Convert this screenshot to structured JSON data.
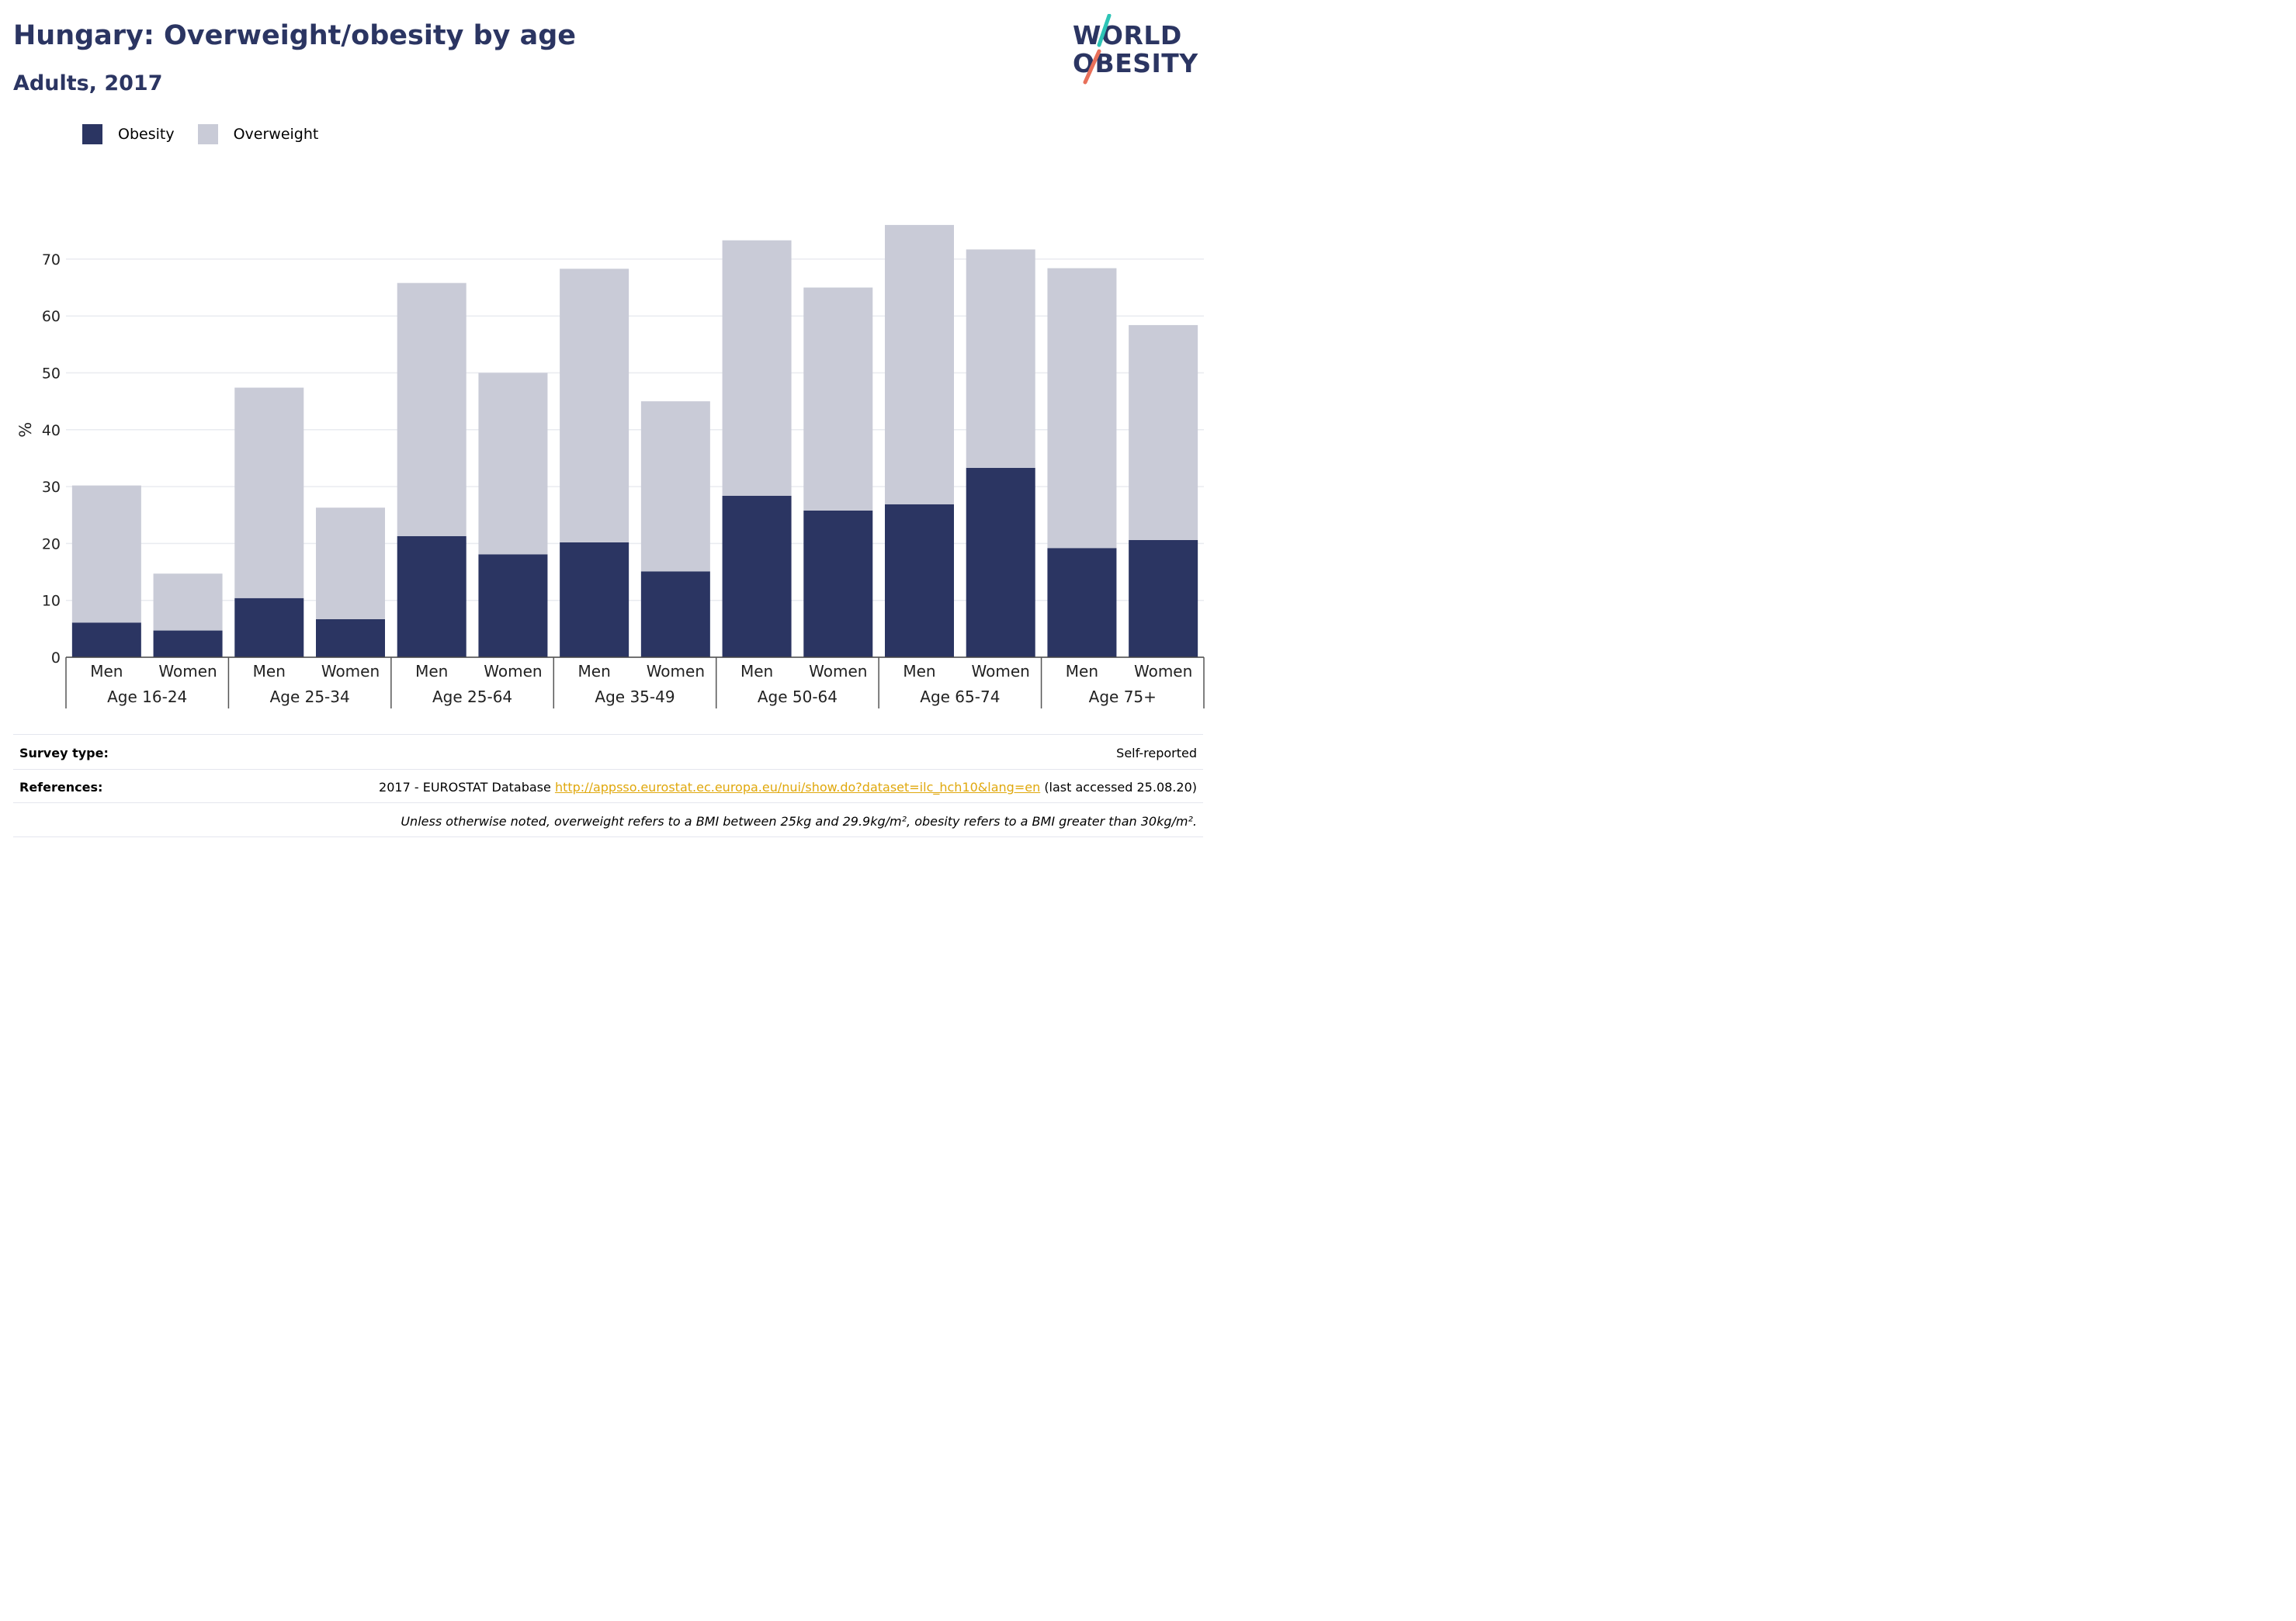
{
  "header": {
    "title": "Hungary: Overweight/obesity by age",
    "subtitle": "Adults, 2017"
  },
  "logo": {
    "line1": "WORLD",
    "line2": "OBESITY",
    "slash_colors": [
      "#2ec4b6",
      "#e8705a"
    ]
  },
  "legend": [
    {
      "label": "Obesity",
      "color": "#2b3562"
    },
    {
      "label": "Overweight",
      "color": "#c9cbd7"
    }
  ],
  "chart_data": {
    "type": "bar",
    "stacked": true,
    "ylabel": "%",
    "ylim": [
      0,
      80
    ],
    "yticks": [
      0,
      10,
      20,
      30,
      40,
      50,
      60,
      70
    ],
    "grid": true,
    "legend_position": "top-left",
    "groups": [
      "Age 16-24",
      "Age 25-34",
      "Age 25-64",
      "Age 35-49",
      "Age 50-64",
      "Age 65-74",
      "Age 75+"
    ],
    "subcategories": [
      "Men",
      "Women"
    ],
    "series": [
      {
        "name": "Obesity",
        "color": "#2b3562",
        "values": [
          6.1,
          4.7,
          10.4,
          6.7,
          21.3,
          18.1,
          20.2,
          15.1,
          28.4,
          25.8,
          26.9,
          33.3,
          19.2,
          20.6
        ]
      },
      {
        "name": "Overweight",
        "color": "#c9cbd7",
        "values": [
          24.1,
          10.0,
          37.0,
          19.6,
          44.5,
          31.9,
          48.1,
          29.9,
          44.9,
          39.2,
          49.1,
          38.4,
          49.2,
          37.8
        ]
      }
    ]
  },
  "info": {
    "survey_label": "Survey type:",
    "survey_value": "Self-reported",
    "references_label": "References:",
    "references_prefix": "2017 - EUROSTAT Database",
    "references_link": "http://appsso.eurostat.ec.europa.eu/nui/show.do?dataset=ilc_hch10&lang=en",
    "references_suffix": "(last accessed 25.08.20)",
    "note": "Unless otherwise noted, overweight refers to a BMI between 25kg and 29.9kg/m², obesity refers to a BMI greater than 30kg/m²."
  }
}
